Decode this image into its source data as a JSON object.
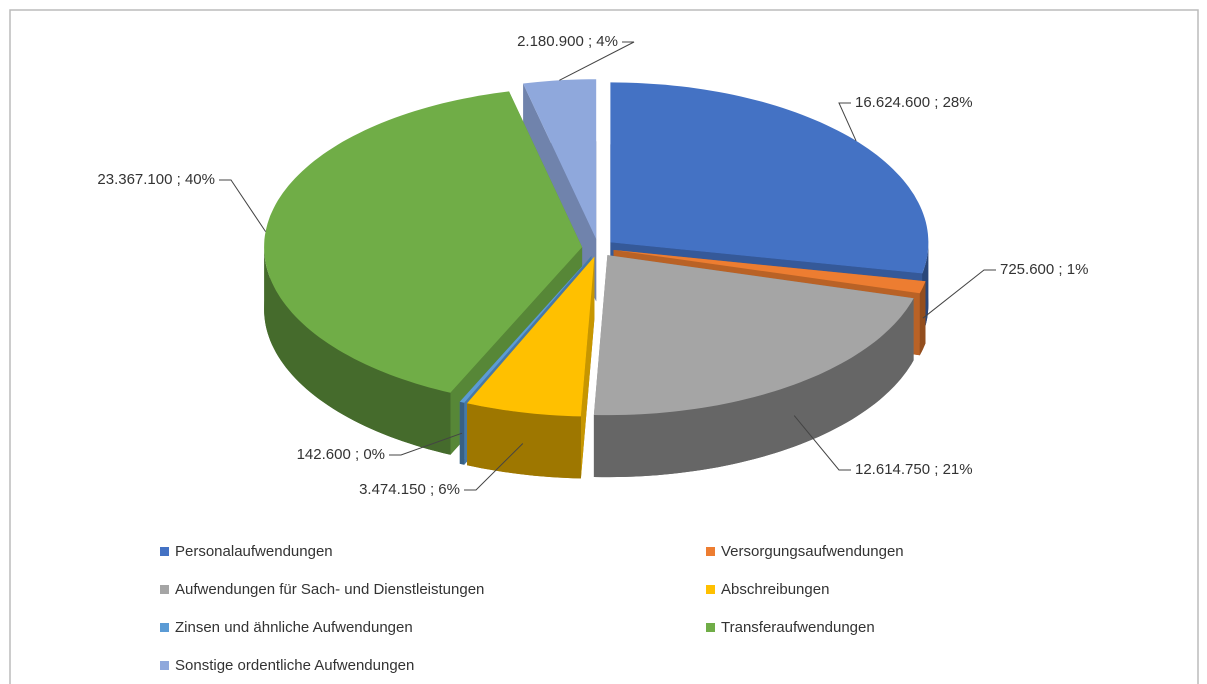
{
  "chart_data": {
    "type": "pie",
    "categories": [
      "Personalaufwendungen",
      "Versorgungsaufwendungen",
      "Aufwendungen für Sach- und Dienstleistungen",
      "Abschreibungen",
      "Zinsen und ähnliche Aufwendungen",
      "Transferaufwendungen",
      "Sonstige ordentliche Aufwendungen"
    ],
    "values": [
      16624600,
      725600,
      12614750,
      3474150,
      142600,
      23367100,
      2180900
    ],
    "value_labels": [
      "16.624.600 ; 28%",
      "725.600 ; 1%",
      "12.614.750 ; 21%",
      "3.474.150 ; 6%",
      "142.600 ; 0%",
      "23.367.100 ; 40%",
      "2.180.900 ; 4%"
    ],
    "colors": [
      "#4472c4",
      "#ed7d31",
      "#a5a5a5",
      "#ffc000",
      "#5b9bd5",
      "#70ad47",
      "#8fa8dc"
    ],
    "legend": "bottom"
  }
}
